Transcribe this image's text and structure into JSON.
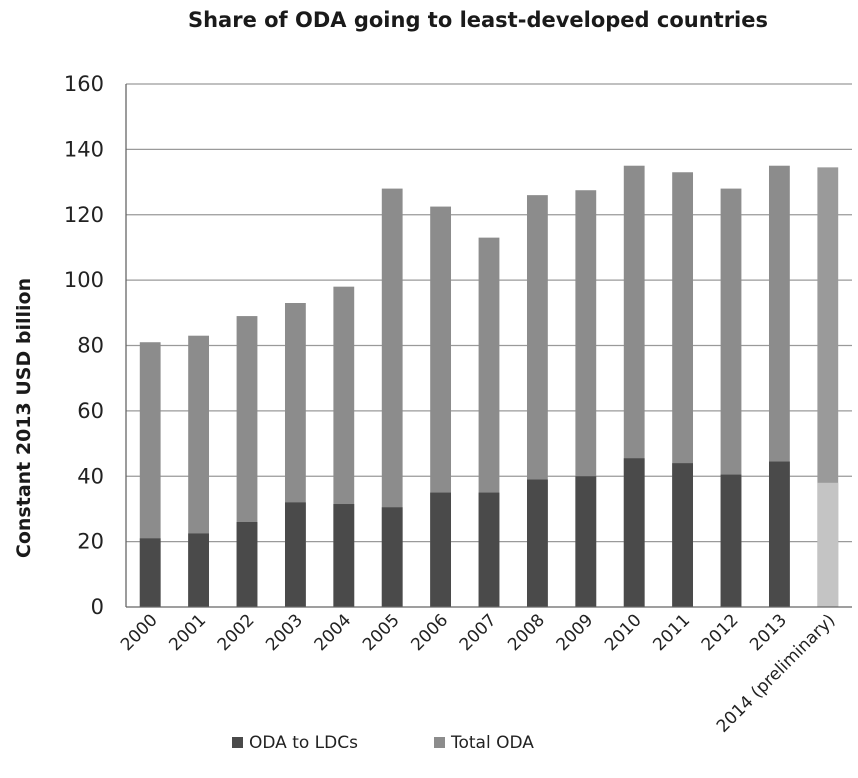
{
  "chart_data": {
    "type": "bar",
    "title": "Share of ODA going to least-developed countries",
    "xlabel": "",
    "ylabel": "Constant 2013  USD billion",
    "ylim": [
      0,
      160
    ],
    "yticks": [
      0,
      20,
      40,
      60,
      80,
      100,
      120,
      140,
      160
    ],
    "grid": true,
    "legend_position": "bottom",
    "categories": [
      "2000",
      "2001",
      "2002",
      "2003",
      "2004",
      "2005",
      "2006",
      "2007",
      "2008",
      "2009",
      "2010",
      "2011",
      "2012",
      "2013",
      "2014 (preliminary)"
    ],
    "series": [
      {
        "name": "ODA to LDCs",
        "color": "#4a4a4a",
        "values": [
          21,
          22.5,
          26,
          32,
          31.5,
          30.5,
          35,
          35,
          39,
          40,
          45.5,
          44,
          40.5,
          44.5,
          38
        ]
      },
      {
        "name": "Total ODA",
        "color": "#8c8c8c",
        "values": [
          81,
          83,
          89,
          93,
          98,
          128,
          122.5,
          113,
          126,
          127.5,
          135,
          133,
          128,
          135,
          134.5
        ]
      }
    ],
    "preliminary_colors": {
      "ODA to LDCs": "#c4c4c4",
      "Total ODA": "#9a9a9a"
    }
  }
}
